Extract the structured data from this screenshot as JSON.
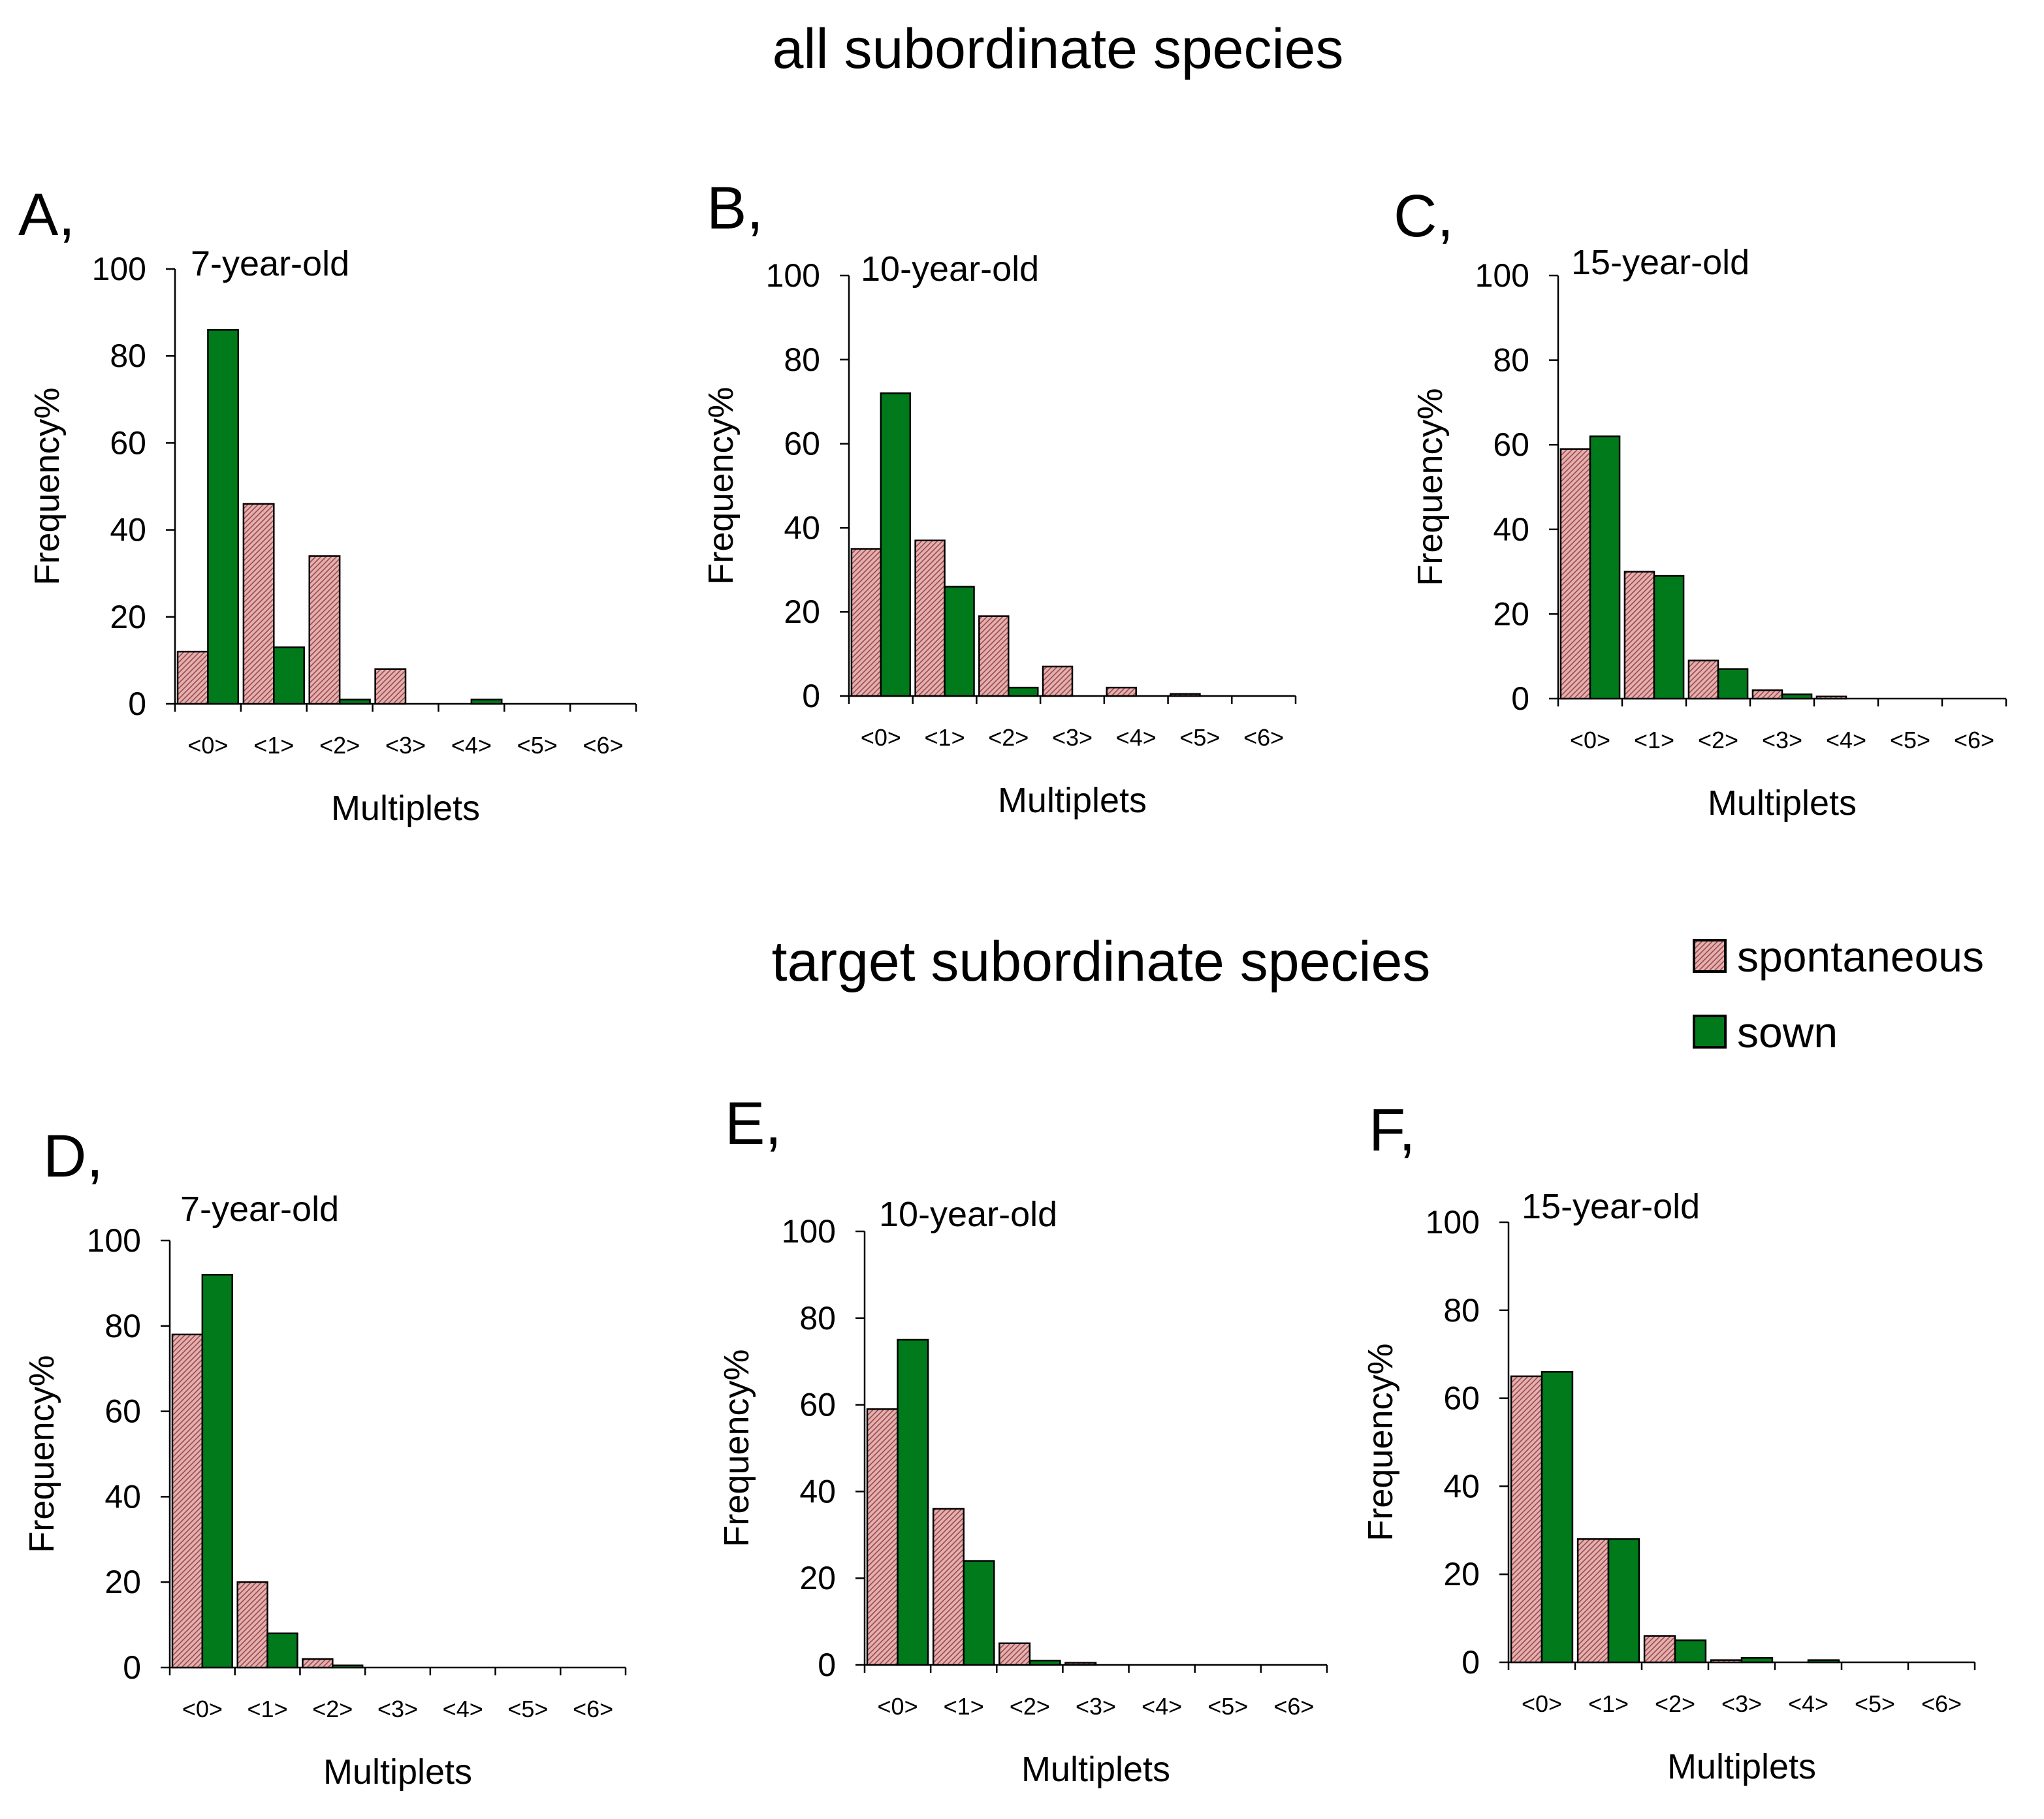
{
  "titles": {
    "top": "all subordinate species",
    "bottom": "target subordinate species"
  },
  "legend": [
    {
      "label": "spontaneous",
      "pattern": "hatched",
      "color": "#d8a0a0"
    },
    {
      "label": "sown",
      "color": "#007a1a"
    }
  ],
  "colors": {
    "spontaneous": "#d8a0a0",
    "spontaneous_hatch": "#a04848",
    "sown": "#007a1a"
  },
  "chart_data": [
    {
      "type": "bar",
      "panel": "A,",
      "subtitle": "7-year-old",
      "group": "all subordinate species",
      "categories": [
        "<0>",
        "<1>",
        "<2>",
        "<3>",
        "<4>",
        "<5>",
        "<6>"
      ],
      "series": [
        {
          "name": "spontaneous",
          "values": [
            12,
            46,
            34,
            8,
            0,
            0,
            0
          ]
        },
        {
          "name": "sown",
          "values": [
            86,
            13,
            1,
            0,
            1,
            0,
            0
          ]
        }
      ],
      "xlabel": "Multiplets",
      "ylabel": "Frequency%",
      "ylim": [
        0,
        100
      ],
      "yticks": [
        0,
        20,
        40,
        60,
        80,
        100
      ]
    },
    {
      "type": "bar",
      "panel": "B,",
      "subtitle": "10-year-old",
      "group": "all subordinate species",
      "categories": [
        "<0>",
        "<1>",
        "<2>",
        "<3>",
        "<4>",
        "<5>",
        "<6>"
      ],
      "series": [
        {
          "name": "spontaneous",
          "values": [
            35,
            37,
            19,
            7,
            2,
            0.5,
            0
          ]
        },
        {
          "name": "sown",
          "values": [
            72,
            26,
            2,
            0,
            0,
            0,
            0
          ]
        }
      ],
      "xlabel": "Multiplets",
      "ylabel": "Frequency%",
      "ylim": [
        0,
        100
      ],
      "yticks": [
        0,
        20,
        40,
        60,
        80,
        100
      ]
    },
    {
      "type": "bar",
      "panel": "C,",
      "subtitle": "15-year-old",
      "group": "all subordinate species",
      "categories": [
        "<0>",
        "<1>",
        "<2>",
        "<3>",
        "<4>",
        "<5>",
        "<6>"
      ],
      "series": [
        {
          "name": "spontaneous",
          "values": [
            59,
            30,
            9,
            2,
            0.5,
            0,
            0
          ]
        },
        {
          "name": "sown",
          "values": [
            62,
            29,
            7,
            1,
            0,
            0,
            0
          ]
        }
      ],
      "xlabel": "Multiplets",
      "ylabel": "Frequency%",
      "ylim": [
        0,
        100
      ],
      "yticks": [
        0,
        20,
        40,
        60,
        80,
        100
      ]
    },
    {
      "type": "bar",
      "panel": "D,",
      "subtitle": "7-year-old",
      "group": "target subordinate species",
      "categories": [
        "<0>",
        "<1>",
        "<2>",
        "<3>",
        "<4>",
        "<5>",
        "<6>"
      ],
      "series": [
        {
          "name": "spontaneous",
          "values": [
            78,
            20,
            2,
            0,
            0,
            0,
            0
          ]
        },
        {
          "name": "sown",
          "values": [
            92,
            8,
            0.5,
            0,
            0,
            0,
            0
          ]
        }
      ],
      "xlabel": "Multiplets",
      "ylabel": "Frequency%",
      "ylim": [
        0,
        100
      ],
      "yticks": [
        0,
        20,
        40,
        60,
        80,
        100
      ]
    },
    {
      "type": "bar",
      "panel": "E,",
      "subtitle": "10-year-old",
      "group": "target subordinate species",
      "categories": [
        "<0>",
        "<1>",
        "<2>",
        "<3>",
        "<4>",
        "<5>",
        "<6>"
      ],
      "series": [
        {
          "name": "spontaneous",
          "values": [
            59,
            36,
            5,
            0.5,
            0,
            0,
            0
          ]
        },
        {
          "name": "sown",
          "values": [
            75,
            24,
            1,
            0,
            0,
            0,
            0
          ]
        }
      ],
      "xlabel": "Multiplets",
      "ylabel": "Frequency%",
      "ylim": [
        0,
        100
      ],
      "yticks": [
        0,
        20,
        40,
        60,
        80,
        100
      ]
    },
    {
      "type": "bar",
      "panel": "F,",
      "subtitle": "15-year-old",
      "group": "target subordinate species",
      "categories": [
        "<0>",
        "<1>",
        "<2>",
        "<3>",
        "<4>",
        "<5>",
        "<6>"
      ],
      "series": [
        {
          "name": "spontaneous",
          "values": [
            65,
            28,
            6,
            0.5,
            0,
            0,
            0
          ]
        },
        {
          "name": "sown",
          "values": [
            66,
            28,
            5,
            1,
            0.5,
            0,
            0
          ]
        }
      ],
      "xlabel": "Multiplets",
      "ylabel": "Frequency%",
      "ylim": [
        0,
        100
      ],
      "yticks": [
        0,
        20,
        40,
        60,
        80,
        100
      ]
    }
  ]
}
